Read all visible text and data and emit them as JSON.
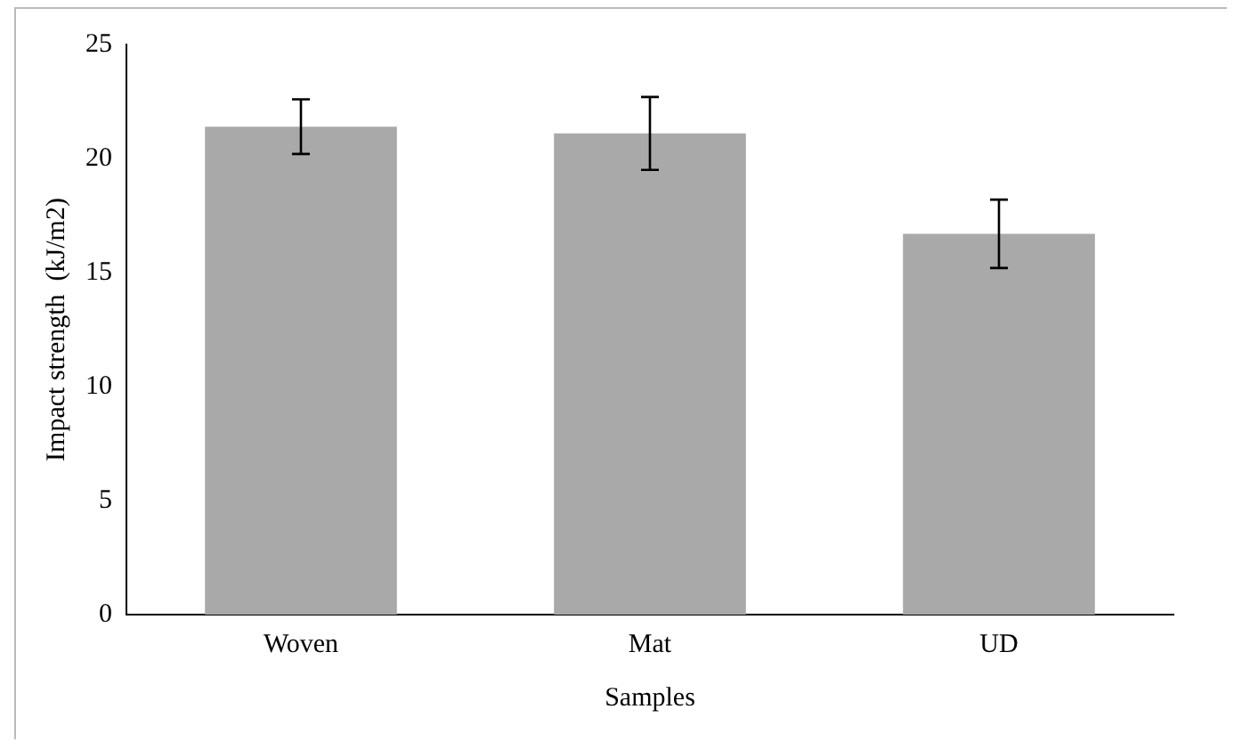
{
  "chart_data": {
    "type": "bar",
    "xlabel": "Samples",
    "ylabel": "Impact strength  (kJ/m2)",
    "categories": [
      "Woven",
      "Mat",
      "UD"
    ],
    "values": [
      21.4,
      21.1,
      16.7
    ],
    "errors": [
      1.2,
      1.6,
      1.5
    ],
    "color": "#a9a9a9",
    "ylim": [
      0,
      25
    ],
    "yticks": [
      0,
      5,
      10,
      15,
      20,
      25
    ],
    "grid": false,
    "legend": false
  }
}
